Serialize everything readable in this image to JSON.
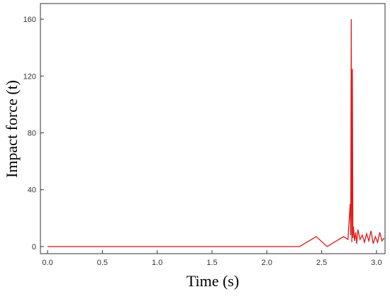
{
  "chart_data": {
    "type": "line",
    "x_label": "Time (s)",
    "y_label": "Impact force (t)",
    "xlim": [
      -0.065,
      3.078
    ],
    "ylim": [
      -5,
      171
    ],
    "xticks": [
      {
        "value": 0,
        "label": "0.0"
      },
      0.5,
      {
        "value": 1,
        "label": "1.0"
      },
      1.5,
      {
        "value": 2,
        "label": "2.0"
      },
      2.5,
      {
        "value": 3,
        "label": "3.0"
      }
    ],
    "yticks": [
      0,
      40,
      80,
      120,
      160
    ],
    "x": [
      0,
      2.3,
      2.45,
      2.55,
      2.7,
      2.74,
      2.76,
      2.765,
      2.77,
      2.775,
      2.78,
      2.785,
      2.79,
      2.8,
      2.81,
      2.82,
      2.83,
      2.85,
      2.87,
      2.89,
      2.91,
      2.93,
      2.95,
      2.97,
      2.99,
      3.01,
      3.03,
      3.05,
      3.07
    ],
    "series": [
      {
        "color": "#e01818",
        "values": [
          0,
          0,
          7,
          0,
          7,
          5,
          30,
          8,
          160,
          3,
          125,
          6,
          14,
          4,
          10,
          2,
          12,
          5,
          8,
          3,
          9,
          4,
          11,
          2,
          7,
          3,
          10,
          4,
          6
        ]
      }
    ]
  }
}
